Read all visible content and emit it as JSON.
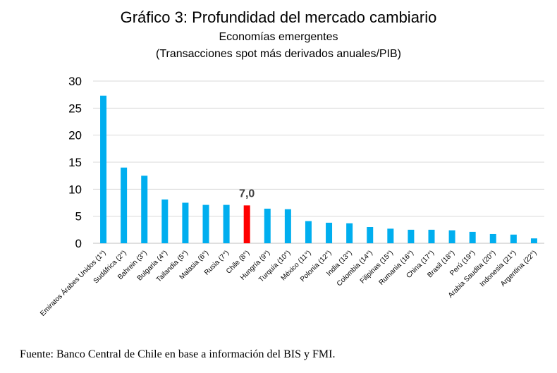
{
  "chart_data": {
    "type": "bar",
    "title": "Gráfico 3: Profundidad del mercado cambiario",
    "subtitle": "Economías emergentes",
    "subtitle2": "(Transacciones spot más derivados anuales/PIB)",
    "categories": [
      "Emiratos Árabes Unidos (1°)",
      "Sudáfrica (2°)",
      "Bahrein (3°)",
      "Bulgaria (4°)",
      "Tailandia (5°)",
      "Malasia (6°)",
      "Rusia (7°)",
      "Chile (8°)",
      "Hungría (9°)",
      "Turquía (10°)",
      "México (11°)",
      "Polonia (12°)",
      "India (13°)",
      "Colombia (14°)",
      "Filipinas (15°)",
      "Rumania (16°)",
      "China (17°)",
      "Brasil (18°)",
      "Perú (19°)",
      "Arabia Saudita (20°)",
      "Indonesia (21°)",
      "Argentina (22°)"
    ],
    "values": [
      27.3,
      14.0,
      12.5,
      8.1,
      7.5,
      7.1,
      7.1,
      7.0,
      6.4,
      6.3,
      4.1,
      3.8,
      3.7,
      3.0,
      2.7,
      2.5,
      2.5,
      2.4,
      2.1,
      1.7,
      1.6,
      0.9
    ],
    "highlight_index": 7,
    "highlight_label": "7,0",
    "ylim": [
      0,
      30
    ],
    "yticks": [
      0,
      5,
      10,
      15,
      20,
      25,
      30
    ],
    "grid": true,
    "xlabel": "",
    "ylabel": "",
    "colors": {
      "bar": "#00AEEF",
      "highlight": "#FF0000",
      "grid": "#D9D9D9",
      "text": "#000000"
    }
  },
  "source": "Fuente: Banco Central de Chile en base a información del BIS y FMI."
}
